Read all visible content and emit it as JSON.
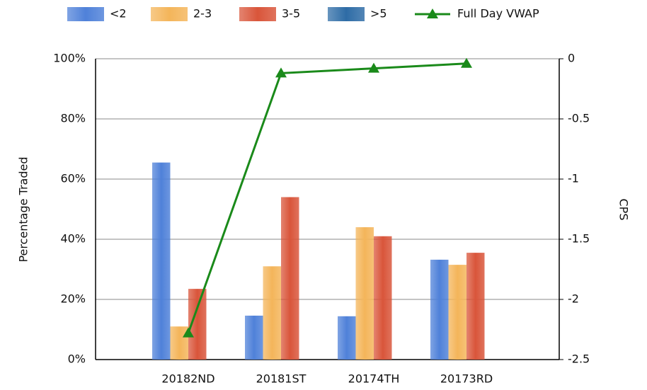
{
  "chart_data": {
    "type": "bar",
    "categories": [
      "20182ND",
      "20181ST",
      "20174TH",
      "20173RD"
    ],
    "series": [
      {
        "name": "<2",
        "color": "#4f81d9",
        "values": [
          65.5,
          14.6,
          14.4,
          33.2
        ]
      },
      {
        "name": "2-3",
        "color": "#f4b55a",
        "values": [
          11,
          31,
          44,
          31.5
        ]
      },
      {
        "name": "3-5",
        "color": "#d9553a",
        "values": [
          23.5,
          54,
          41,
          35.5
        ]
      },
      {
        "name": ">5",
        "color": "#2e6ca6",
        "values": [
          0,
          0,
          0,
          0
        ]
      },
      {
        "name": "Full Day VWAP",
        "type": "line",
        "axis": "y2",
        "color": "#1a8a1a",
        "values": [
          -2.28,
          -0.12,
          -0.08,
          -0.04
        ]
      }
    ],
    "ylabel": "Percentage Traded",
    "y2label": "CPS",
    "ylim": [
      0,
      100
    ],
    "yticks": [
      {
        "value": 0,
        "label": "0%"
      },
      {
        "value": 20,
        "label": "20%"
      },
      {
        "value": 40,
        "label": "40%"
      },
      {
        "value": 60,
        "label": "60%"
      },
      {
        "value": 80,
        "label": "80%"
      },
      {
        "value": 100,
        "label": "100%"
      }
    ],
    "y2lim": [
      -2.5,
      0
    ],
    "y2ticks": [
      0,
      -0.5,
      -1,
      -1.5,
      -2,
      -2.5
    ],
    "grid": true,
    "legend": "top"
  }
}
